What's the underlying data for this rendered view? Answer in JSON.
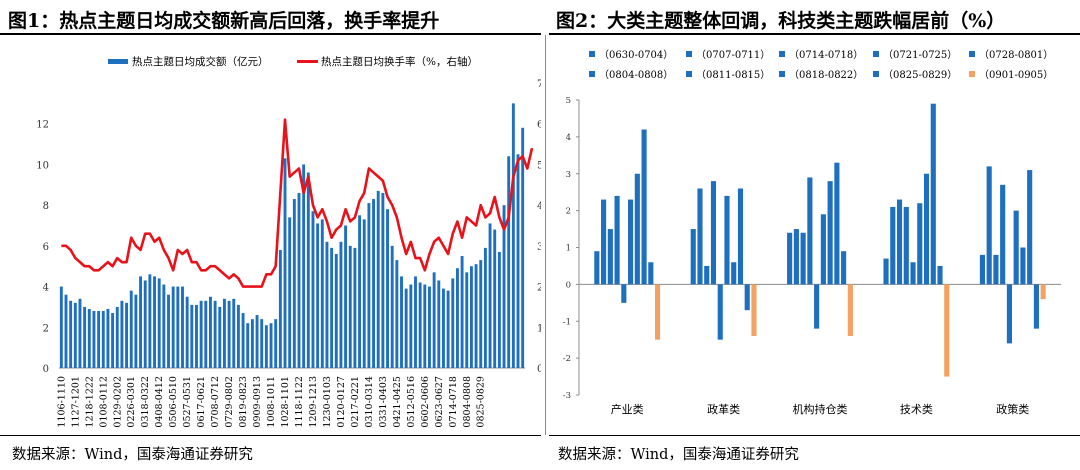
{
  "left": {
    "title": "图1：热点主题日均成交额新高后回落，换手率提升",
    "source": "数据来源：Wind，国泰海通证券研究"
  },
  "right": {
    "title": "图2：大类主题整体回调，科技类主题跌幅居前（%）",
    "source": "数据来源：Wind，国泰海通证券研究"
  },
  "colors": {
    "bar_blue": "#1f6fbf",
    "line_red": "#e8121b",
    "orange": "#f4a261",
    "axis": "#8c8c8c"
  },
  "chart_data": [
    {
      "type": "bar+line",
      "legend": [
        "热点主题日均成交额（亿元）",
        "热点主题日均换手率（%，右轴）"
      ],
      "x_tick_labels": [
        "1106-1110",
        "1127-1201",
        "1218-1222",
        "0108-0112",
        "0129-0202",
        "0226-0301",
        "0318-0322",
        "0408-0412",
        "0506-0510",
        "0527-0531",
        "0617-0621",
        "0708-0712",
        "0729-0802",
        "0819-0823",
        "0909-0913",
        "1008-1011",
        "1028-1101",
        "1118-1122",
        "1209-1213",
        "1230-0103",
        "0120-0127",
        "0217-0221",
        "0310-0314",
        "0331-0403",
        "0421-0425",
        "0512-0516",
        "0602-0606",
        "0623-0627",
        "0714-0718",
        "0804-0808",
        "0825-0829"
      ],
      "x_tick_every": 3,
      "left_axis": {
        "ylim": [
          0,
          14
        ],
        "ticks": [
          0,
          2,
          4,
          6,
          8,
          10,
          12
        ]
      },
      "right_axis": {
        "ylim": [
          0,
          7
        ],
        "ticks": [
          0,
          1,
          2,
          3,
          4,
          5,
          6,
          7
        ]
      },
      "bars_left_axis": [
        4.0,
        3.6,
        3.3,
        3.2,
        3.4,
        3.0,
        2.9,
        2.8,
        2.8,
        2.8,
        2.9,
        2.7,
        3.0,
        3.3,
        3.2,
        3.8,
        3.6,
        4.5,
        4.3,
        4.6,
        4.5,
        4.4,
        4.1,
        3.6,
        4.0,
        4.0,
        4.0,
        3.5,
        3.1,
        3.1,
        3.3,
        3.3,
        3.5,
        3.3,
        3.0,
        3.4,
        3.3,
        3.4,
        3.1,
        2.7,
        2.2,
        2.4,
        2.6,
        2.4,
        2.1,
        2.2,
        2.4,
        5.8,
        10.3,
        7.4,
        8.3,
        8.6,
        10.0,
        9.6,
        7.7,
        7.1,
        7.3,
        6.2,
        5.9,
        5.6,
        6.2,
        7.0,
        6.0,
        5.9,
        7.5,
        7.3,
        8.1,
        8.3,
        8.7,
        8.6,
        7.8,
        6.0,
        5.3,
        4.5,
        3.9,
        4.1,
        4.5,
        4.2,
        4.1,
        4.0,
        4.7,
        4.3,
        3.9,
        3.8,
        4.4,
        4.9,
        5.5,
        4.7,
        5.0,
        5.1,
        5.3,
        5.9,
        7.1,
        6.8,
        5.7,
        8.0,
        10.4,
        13.0,
        10.5,
        11.8
      ],
      "line_right_axis": [
        3.0,
        3.0,
        2.9,
        2.7,
        2.6,
        2.5,
        2.5,
        2.4,
        2.4,
        2.5,
        2.6,
        2.5,
        2.7,
        2.6,
        2.6,
        3.2,
        3.0,
        2.9,
        3.3,
        3.3,
        3.1,
        3.2,
        2.9,
        2.7,
        2.4,
        2.9,
        2.8,
        2.9,
        2.6,
        2.6,
        2.4,
        2.4,
        2.5,
        2.5,
        2.4,
        2.3,
        2.2,
        2.3,
        2.2,
        2.0,
        2.0,
        2.0,
        2.0,
        2.0,
        2.3,
        2.3,
        2.5,
        4.3,
        6.1,
        4.7,
        4.8,
        4.9,
        4.3,
        4.7,
        4.0,
        3.7,
        3.9,
        3.6,
        3.2,
        3.4,
        3.5,
        3.9,
        3.6,
        3.7,
        4.1,
        4.3,
        4.9,
        4.8,
        4.7,
        4.6,
        4.2,
        4.0,
        3.7,
        3.2,
        2.8,
        3.1,
        2.7,
        2.7,
        2.4,
        2.8,
        3.1,
        3.2,
        3.0,
        2.8,
        3.3,
        3.6,
        3.2,
        3.7,
        3.6,
        3.5,
        4.0,
        3.7,
        3.8,
        4.2,
        3.7,
        3.4,
        3.7,
        4.7,
        5.1,
        5.2,
        4.9,
        5.4
      ]
    },
    {
      "type": "bar",
      "title": "大类主题整体回调，科技类主题跌幅居前（%）",
      "categories": [
        "产业类",
        "政革类",
        "机构持仓类",
        "技术类",
        "政策类"
      ],
      "ylim": [
        -3,
        5
      ],
      "ticks": [
        -3,
        -2,
        -1,
        0,
        1,
        2,
        3,
        4,
        5
      ],
      "series": [
        {
          "name": "（0630-0704）",
          "color": "#1f6fbf",
          "values": [
            0.9,
            1.5,
            1.4,
            0.7,
            0.8
          ]
        },
        {
          "name": "（0707-0711）",
          "color": "#1f6fbf",
          "values": [
            2.3,
            2.6,
            1.5,
            2.1,
            3.2
          ]
        },
        {
          "name": "（0714-0718）",
          "color": "#1f6fbf",
          "values": [
            1.5,
            0.5,
            1.4,
            2.3,
            0.8
          ]
        },
        {
          "name": "（0721-0725）",
          "color": "#1f6fbf",
          "values": [
            2.4,
            2.8,
            2.9,
            2.1,
            2.7
          ]
        },
        {
          "name": "（0728-0801）",
          "color": "#1f6fbf",
          "values": [
            -0.5,
            -1.5,
            -1.2,
            0.6,
            -1.6
          ]
        },
        {
          "name": "（0804-0808）",
          "color": "#1f6fbf",
          "values": [
            2.3,
            2.4,
            1.9,
            2.2,
            2.0
          ]
        },
        {
          "name": "（0811-0815）",
          "color": "#1f6fbf",
          "values": [
            3.0,
            0.6,
            2.8,
            3.0,
            1.0
          ]
        },
        {
          "name": "（0818-0822）",
          "color": "#1f6fbf",
          "values": [
            4.2,
            2.6,
            3.3,
            4.9,
            3.1
          ]
        },
        {
          "name": "（0825-0829）",
          "color": "#1f6fbf",
          "values": [
            0.6,
            -0.7,
            0.9,
            0.5,
            -1.2
          ]
        },
        {
          "name": "（0901-0905）",
          "color": "#f4a261",
          "values": [
            -1.5,
            -1.4,
            -1.4,
            -2.5,
            -0.4
          ]
        }
      ]
    }
  ]
}
